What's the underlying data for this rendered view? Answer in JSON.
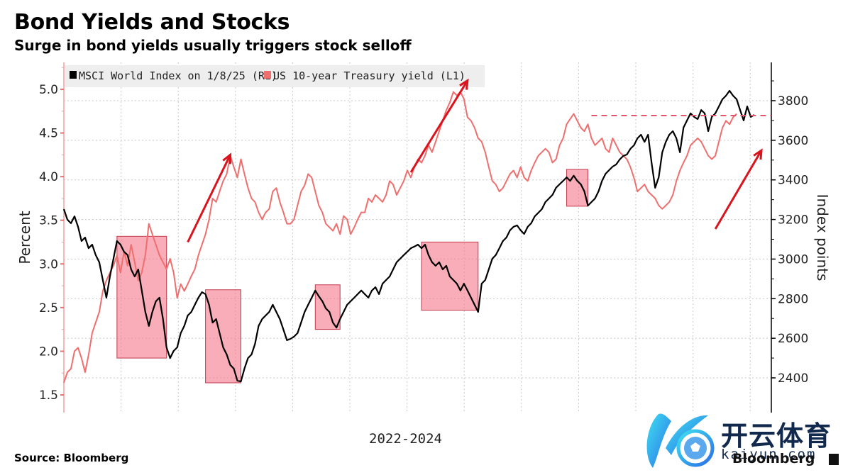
{
  "header": {
    "title": "Bond Yields and Stocks",
    "subtitle": "Surge in bond yields usually triggers stock selloff"
  },
  "footer": {
    "source": "Source: Bloomberg",
    "brand": "Bloomberg"
  },
  "watermark": {
    "chinese": "开云体育",
    "url": "kaiyun.com"
  },
  "colors": {
    "msci": "#000000",
    "yield": "#ef6f6f",
    "box_fill": "#f47a8c",
    "box_stroke": "#c23a4e",
    "arrow": "#d9141e",
    "dashed": "#e0566e",
    "grid": "#c8c8c8",
    "left_axis": "#f1a3a3",
    "right_axis": "#000000",
    "legend_bg": "#eeeeee"
  },
  "chart_data": {
    "type": "line",
    "title": "Bond Yields and Stocks",
    "subtitle": "Surge in bond yields usually triggers stock selloff",
    "xlabel": "2022-2024",
    "x_range": [
      "2022",
      "2024"
    ],
    "legend": {
      "placement": "top-left",
      "entries": [
        {
          "label": "MSCI World Index on 1/8/25 (R1)",
          "color": "#000000"
        },
        {
          "label": "US 10-year Treasury yield (L1)",
          "color": "#ef6f6f"
        }
      ]
    },
    "left_axis": {
      "label": "Percent",
      "ylim": [
        1.4,
        5.25
      ],
      "ticks": [
        "1.5",
        "2.0",
        "2.5",
        "3.0",
        "3.5",
        "4.0",
        "4.5",
        "5.0"
      ]
    },
    "right_axis": {
      "label": "Index points",
      "ylim": [
        2300,
        3990
      ],
      "ticks": [
        "2400",
        "2600",
        "2800",
        "3000",
        "3200",
        "3400",
        "3600",
        "3800"
      ]
    },
    "grid": true,
    "series": [
      {
        "name": "MSCI World Index on 1/8/25 (R1)",
        "axis": "right",
        "values": [
          3252,
          3199,
          3181,
          3216,
          3163,
          3091,
          3109,
          3055,
          3073,
          3020,
          2984,
          2894,
          2805,
          2912,
          3002,
          3091,
          3073,
          3037,
          3020,
          2948,
          2912,
          2948,
          2841,
          2733,
          2662,
          2733,
          2787,
          2805,
          2697,
          2554,
          2500,
          2536,
          2554,
          2626,
          2662,
          2715,
          2733,
          2769,
          2805,
          2833,
          2823,
          2769,
          2679,
          2697,
          2626,
          2554,
          2518,
          2465,
          2447,
          2386,
          2382,
          2447,
          2500,
          2518,
          2572,
          2662,
          2697,
          2715,
          2733,
          2769,
          2733,
          2697,
          2644,
          2590,
          2597,
          2608,
          2626,
          2679,
          2733,
          2769,
          2805,
          2841,
          2812,
          2787,
          2751,
          2733,
          2679,
          2654,
          2697,
          2733,
          2769,
          2787,
          2805,
          2823,
          2841,
          2823,
          2805,
          2841,
          2858,
          2823,
          2876,
          2894,
          2912,
          2948,
          2984,
          3002,
          3020,
          3037,
          3055,
          3063,
          3073,
          3055,
          3073,
          3020,
          2984,
          2966,
          2984,
          2948,
          2966,
          2912,
          2894,
          2876,
          2841,
          2876,
          2841,
          2805,
          2769,
          2733,
          2876,
          2894,
          2948,
          3002,
          3020,
          3055,
          3091,
          3109,
          3145,
          3163,
          3170,
          3145,
          3127,
          3163,
          3181,
          3216,
          3234,
          3252,
          3288,
          3306,
          3324,
          3360,
          3378,
          3395,
          3413,
          3395,
          3421,
          3395,
          3378,
          3342,
          3270,
          3288,
          3306,
          3342,
          3395,
          3431,
          3449,
          3467,
          3478,
          3503,
          3521,
          3528,
          3557,
          3574,
          3610,
          3628,
          3592,
          3628,
          3485,
          3360,
          3413,
          3539,
          3592,
          3628,
          3646,
          3610,
          3539,
          3664,
          3700,
          3736,
          3718,
          3707,
          3753,
          3736,
          3646,
          3718,
          3736,
          3771,
          3807,
          3825,
          3850,
          3825,
          3807,
          3753,
          3700,
          3771,
          3718,
          3728
        ]
      },
      {
        "name": "US 10-year Treasury yield (L1)",
        "axis": "left",
        "values": [
          1.64,
          1.76,
          1.8,
          2.0,
          2.04,
          1.92,
          1.76,
          1.96,
          2.21,
          2.33,
          2.45,
          2.69,
          2.81,
          2.9,
          2.98,
          3.1,
          2.9,
          3.14,
          2.98,
          3.22,
          3.02,
          2.81,
          2.9,
          3.1,
          3.46,
          3.34,
          3.22,
          3.1,
          3.02,
          2.94,
          3.06,
          2.9,
          2.61,
          2.77,
          2.69,
          2.77,
          2.86,
          2.94,
          3.1,
          3.22,
          3.34,
          3.51,
          3.75,
          3.71,
          3.83,
          3.95,
          4.03,
          4.24,
          4.11,
          3.99,
          4.2,
          4.03,
          3.87,
          3.75,
          3.71,
          3.59,
          3.51,
          3.59,
          3.63,
          3.83,
          3.87,
          3.71,
          3.59,
          3.46,
          3.46,
          3.51,
          3.67,
          3.83,
          3.9,
          4.03,
          3.99,
          3.83,
          3.67,
          3.59,
          3.46,
          3.42,
          3.38,
          3.46,
          3.34,
          3.55,
          3.51,
          3.34,
          3.42,
          3.51,
          3.59,
          3.59,
          3.75,
          3.71,
          3.79,
          3.75,
          3.71,
          3.79,
          3.95,
          3.91,
          3.79,
          3.87,
          3.95,
          4.07,
          3.99,
          4.11,
          4.2,
          4.16,
          4.24,
          4.36,
          4.28,
          4.4,
          4.52,
          4.64,
          4.76,
          4.85,
          4.97,
          4.93,
          4.97,
          4.89,
          4.68,
          4.64,
          4.56,
          4.44,
          4.4,
          4.28,
          4.11,
          3.95,
          3.91,
          3.83,
          3.87,
          3.95,
          4.03,
          4.07,
          3.99,
          4.11,
          3.99,
          3.95,
          4.07,
          4.16,
          4.24,
          4.28,
          4.32,
          4.28,
          4.16,
          4.2,
          4.36,
          4.44,
          4.6,
          4.66,
          4.72,
          4.64,
          4.56,
          4.52,
          4.6,
          4.44,
          4.36,
          4.4,
          4.44,
          4.32,
          4.28,
          4.44,
          4.36,
          4.28,
          4.24,
          4.2,
          4.11,
          3.99,
          3.83,
          3.87,
          3.91,
          3.83,
          3.79,
          3.75,
          3.67,
          3.63,
          3.67,
          3.71,
          3.79,
          3.95,
          4.07,
          4.16,
          4.24,
          4.36,
          4.4,
          4.44,
          4.4,
          4.32,
          4.24,
          4.2,
          4.24,
          4.4,
          4.56,
          4.64,
          4.6,
          4.68,
          4.72
        ]
      }
    ],
    "annotations": {
      "selloff_boxes": [
        {
          "label": "selloff-1",
          "x_index": [
            15,
            29
          ],
          "msci_range": [
            2500,
            3115
          ]
        },
        {
          "label": "selloff-2",
          "x_index": [
            40,
            50
          ],
          "msci_range": [
            2375,
            2845
          ]
        },
        {
          "label": "selloff-3",
          "x_index": [
            71,
            78
          ],
          "msci_range": [
            2645,
            2870
          ]
        },
        {
          "label": "selloff-4",
          "x_index": [
            101,
            117
          ],
          "msci_range": [
            2742,
            3086
          ]
        },
        {
          "label": "selloff-5",
          "x_index": [
            142,
            148
          ],
          "msci_range": [
            3267,
            3453
          ]
        }
      ],
      "yield_surge_arrows": [
        {
          "label": "arrow-1",
          "from": {
            "x_index": 35,
            "yield": 3.25
          },
          "to": {
            "x_index": 47,
            "yield": 4.25
          }
        },
        {
          "label": "arrow-2",
          "from": {
            "x_index": 98,
            "yield": 4.05
          },
          "to": {
            "x_index": 114,
            "yield": 5.1
          }
        },
        {
          "label": "arrow-3",
          "from": {
            "x_index": 184,
            "yield": 3.4
          },
          "to": {
            "x_index": 197,
            "yield": 4.3
          }
        }
      ],
      "msci_reference_line": {
        "value": 3725,
        "from_x_index": 149
      }
    }
  }
}
